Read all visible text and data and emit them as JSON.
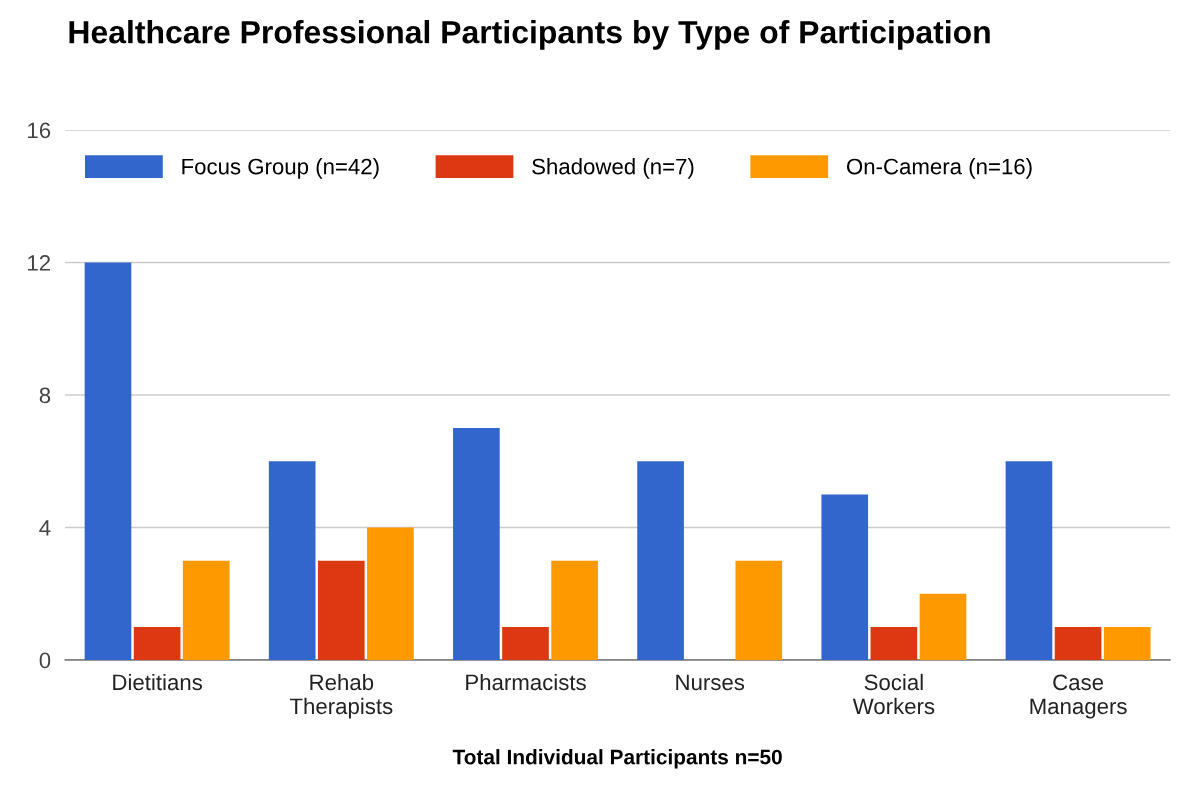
{
  "chart_data": {
    "type": "bar",
    "title": "Healthcare Professional Participants by Type of Participation",
    "xlabel": "Total Individual Participants n=50",
    "categories": [
      "Dietitians",
      "Rehab\nTherapists",
      "Pharmacists",
      "Nurses",
      "Social\nWorkers",
      "Case\nManagers"
    ],
    "series": [
      {
        "name": "Focus Group (n=42)",
        "color": "#3366cc",
        "values": [
          12,
          6,
          7,
          6,
          5,
          6
        ]
      },
      {
        "name": "Shadowed (n=7)",
        "color": "#dc3912",
        "values": [
          1,
          3,
          1,
          0,
          1,
          1
        ]
      },
      {
        "name": "On-Camera (n=16)",
        "color": "#ff9900",
        "values": [
          3,
          4,
          3,
          3,
          2,
          1
        ]
      }
    ],
    "ylim": [
      0,
      16
    ],
    "yticks": [
      0,
      4,
      8,
      12,
      16
    ],
    "grid": "y",
    "legend": "top"
  }
}
